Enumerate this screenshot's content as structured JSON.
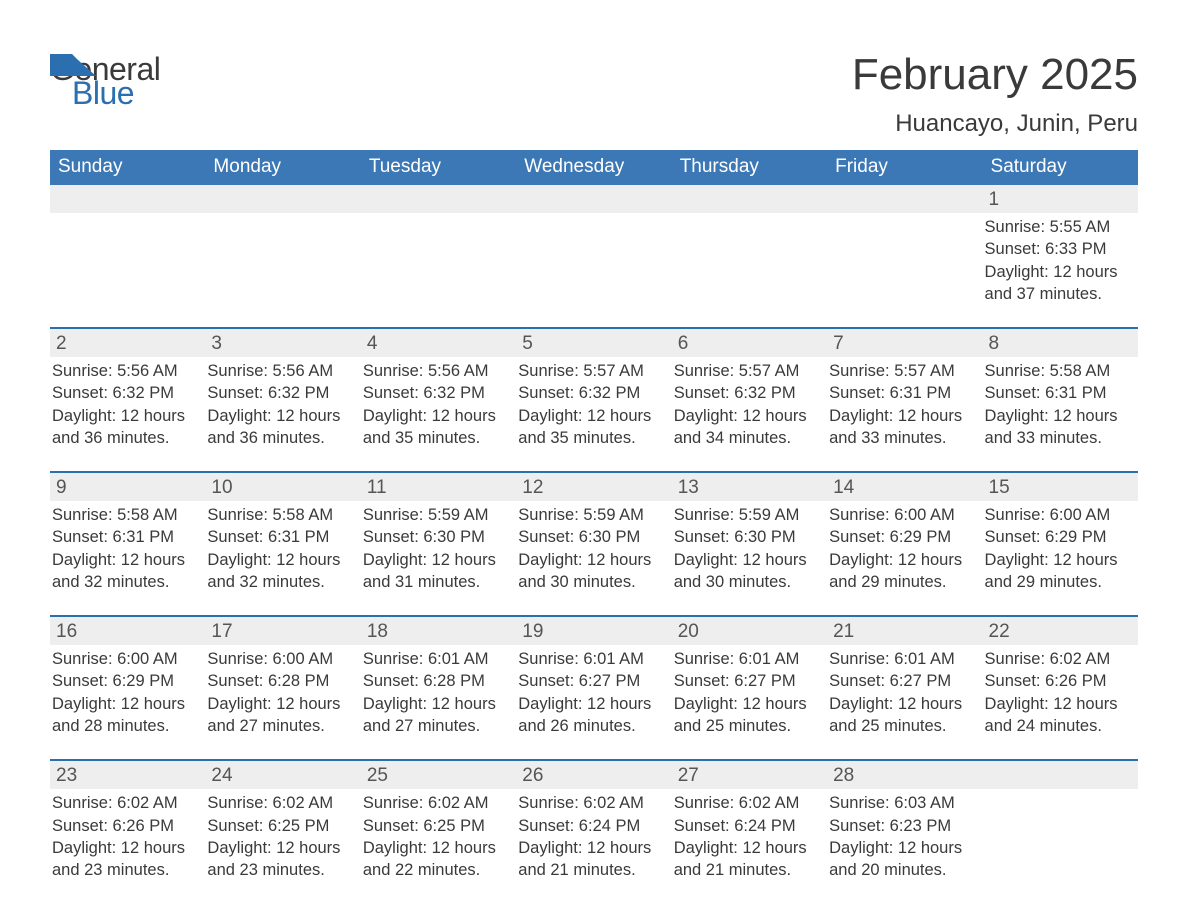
{
  "logo": {
    "word1": "General",
    "word2": "Blue",
    "accent_color": "#2b6fb0",
    "text_color": "#3a3a3a"
  },
  "header": {
    "month_title": "February 2025",
    "location": "Huancayo, Junin, Peru"
  },
  "colors": {
    "header_bg": "#3b78b5",
    "header_text": "#ffffff",
    "rule": "#2b6fb0",
    "daynum_bg": "#eeeeee",
    "body_text": "#3a3a3a",
    "page_bg": "#ffffff"
  },
  "typography": {
    "title_fontsize": 44,
    "location_fontsize": 24,
    "dow_fontsize": 19,
    "body_fontsize": 16.5
  },
  "days_of_week": [
    "Sunday",
    "Monday",
    "Tuesday",
    "Wednesday",
    "Thursday",
    "Friday",
    "Saturday"
  ],
  "labels": {
    "sunrise": "Sunrise:",
    "sunset": "Sunset:",
    "daylight_prefix": "Daylight:",
    "hours_word": "hours",
    "minutes_suffix": "minutes."
  },
  "weeks": [
    [
      {
        "day": ""
      },
      {
        "day": ""
      },
      {
        "day": ""
      },
      {
        "day": ""
      },
      {
        "day": ""
      },
      {
        "day": ""
      },
      {
        "day": "1",
        "sunrise": "5:55 AM",
        "sunset": "6:33 PM",
        "daylight_h": 12,
        "daylight_m": 37
      }
    ],
    [
      {
        "day": "2",
        "sunrise": "5:56 AM",
        "sunset": "6:32 PM",
        "daylight_h": 12,
        "daylight_m": 36
      },
      {
        "day": "3",
        "sunrise": "5:56 AM",
        "sunset": "6:32 PM",
        "daylight_h": 12,
        "daylight_m": 36
      },
      {
        "day": "4",
        "sunrise": "5:56 AM",
        "sunset": "6:32 PM",
        "daylight_h": 12,
        "daylight_m": 35
      },
      {
        "day": "5",
        "sunrise": "5:57 AM",
        "sunset": "6:32 PM",
        "daylight_h": 12,
        "daylight_m": 35
      },
      {
        "day": "6",
        "sunrise": "5:57 AM",
        "sunset": "6:32 PM",
        "daylight_h": 12,
        "daylight_m": 34
      },
      {
        "day": "7",
        "sunrise": "5:57 AM",
        "sunset": "6:31 PM",
        "daylight_h": 12,
        "daylight_m": 33
      },
      {
        "day": "8",
        "sunrise": "5:58 AM",
        "sunset": "6:31 PM",
        "daylight_h": 12,
        "daylight_m": 33
      }
    ],
    [
      {
        "day": "9",
        "sunrise": "5:58 AM",
        "sunset": "6:31 PM",
        "daylight_h": 12,
        "daylight_m": 32
      },
      {
        "day": "10",
        "sunrise": "5:58 AM",
        "sunset": "6:31 PM",
        "daylight_h": 12,
        "daylight_m": 32
      },
      {
        "day": "11",
        "sunrise": "5:59 AM",
        "sunset": "6:30 PM",
        "daylight_h": 12,
        "daylight_m": 31
      },
      {
        "day": "12",
        "sunrise": "5:59 AM",
        "sunset": "6:30 PM",
        "daylight_h": 12,
        "daylight_m": 30
      },
      {
        "day": "13",
        "sunrise": "5:59 AM",
        "sunset": "6:30 PM",
        "daylight_h": 12,
        "daylight_m": 30
      },
      {
        "day": "14",
        "sunrise": "6:00 AM",
        "sunset": "6:29 PM",
        "daylight_h": 12,
        "daylight_m": 29
      },
      {
        "day": "15",
        "sunrise": "6:00 AM",
        "sunset": "6:29 PM",
        "daylight_h": 12,
        "daylight_m": 29
      }
    ],
    [
      {
        "day": "16",
        "sunrise": "6:00 AM",
        "sunset": "6:29 PM",
        "daylight_h": 12,
        "daylight_m": 28
      },
      {
        "day": "17",
        "sunrise": "6:00 AM",
        "sunset": "6:28 PM",
        "daylight_h": 12,
        "daylight_m": 27
      },
      {
        "day": "18",
        "sunrise": "6:01 AM",
        "sunset": "6:28 PM",
        "daylight_h": 12,
        "daylight_m": 27
      },
      {
        "day": "19",
        "sunrise": "6:01 AM",
        "sunset": "6:27 PM",
        "daylight_h": 12,
        "daylight_m": 26
      },
      {
        "day": "20",
        "sunrise": "6:01 AM",
        "sunset": "6:27 PM",
        "daylight_h": 12,
        "daylight_m": 25
      },
      {
        "day": "21",
        "sunrise": "6:01 AM",
        "sunset": "6:27 PM",
        "daylight_h": 12,
        "daylight_m": 25
      },
      {
        "day": "22",
        "sunrise": "6:02 AM",
        "sunset": "6:26 PM",
        "daylight_h": 12,
        "daylight_m": 24
      }
    ],
    [
      {
        "day": "23",
        "sunrise": "6:02 AM",
        "sunset": "6:26 PM",
        "daylight_h": 12,
        "daylight_m": 23
      },
      {
        "day": "24",
        "sunrise": "6:02 AM",
        "sunset": "6:25 PM",
        "daylight_h": 12,
        "daylight_m": 23
      },
      {
        "day": "25",
        "sunrise": "6:02 AM",
        "sunset": "6:25 PM",
        "daylight_h": 12,
        "daylight_m": 22
      },
      {
        "day": "26",
        "sunrise": "6:02 AM",
        "sunset": "6:24 PM",
        "daylight_h": 12,
        "daylight_m": 21
      },
      {
        "day": "27",
        "sunrise": "6:02 AM",
        "sunset": "6:24 PM",
        "daylight_h": 12,
        "daylight_m": 21
      },
      {
        "day": "28",
        "sunrise": "6:03 AM",
        "sunset": "6:23 PM",
        "daylight_h": 12,
        "daylight_m": 20
      },
      {
        "day": ""
      }
    ]
  ]
}
